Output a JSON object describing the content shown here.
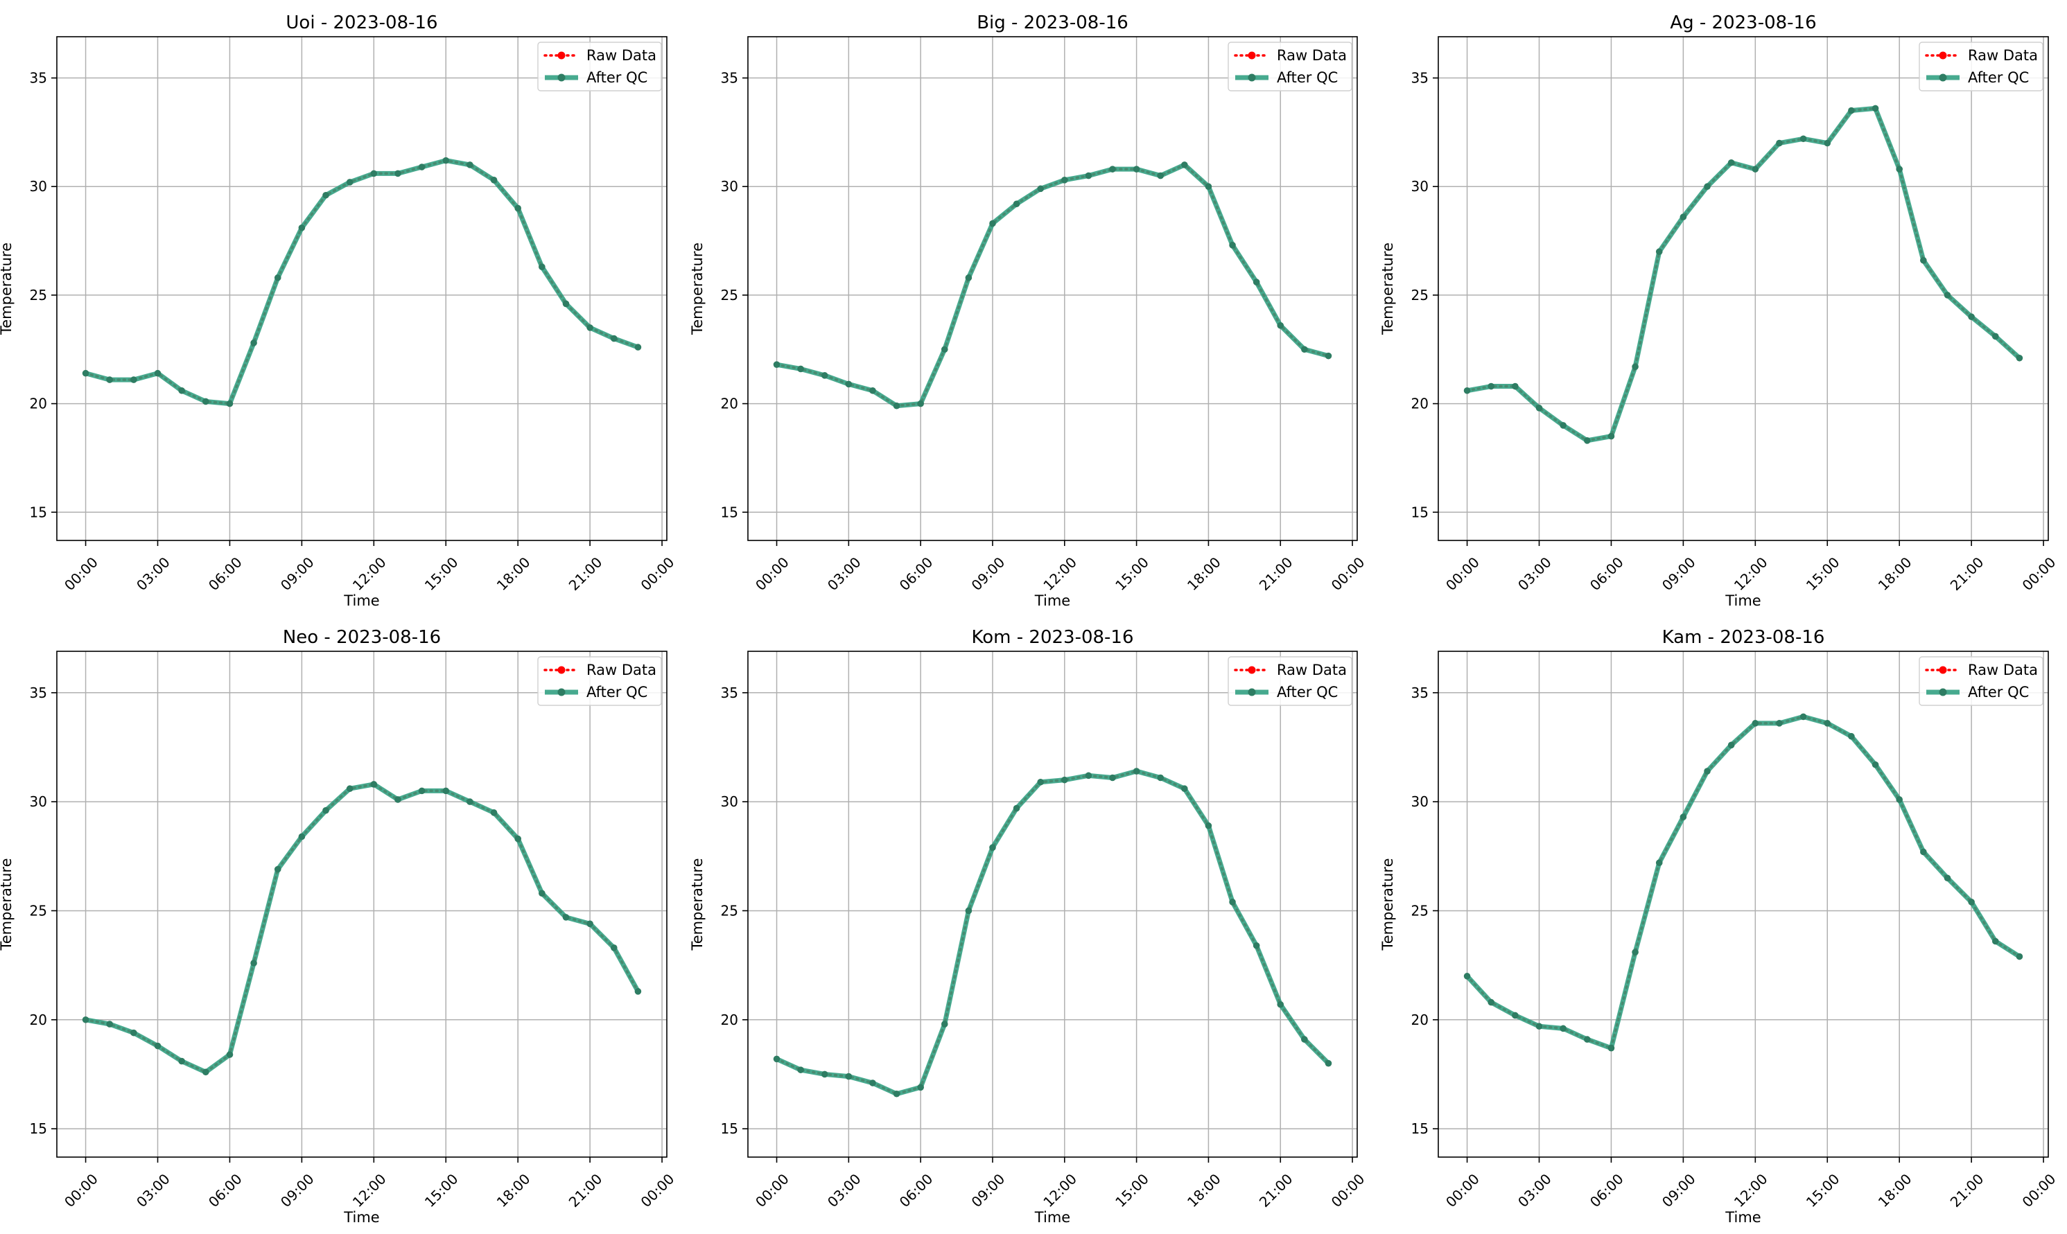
{
  "legend": {
    "raw_label": "Raw Data",
    "qc_label": "After QC"
  },
  "colors": {
    "raw": "#ff0000",
    "qc_line": "#2e9e80",
    "qc_marker": "#2e7d63",
    "grid": "#b0b0b0",
    "axis": "#000000"
  },
  "chart_data": [
    {
      "type": "line",
      "title": "Uoi - 2023-08-16",
      "xlabel": "Time",
      "ylabel": "Temperature",
      "x": [
        "00:00",
        "01:00",
        "02:00",
        "03:00",
        "04:00",
        "05:00",
        "06:00",
        "07:00",
        "08:00",
        "09:00",
        "10:00",
        "11:00",
        "12:00",
        "13:00",
        "14:00",
        "15:00",
        "16:00",
        "17:00",
        "18:00",
        "19:00",
        "20:00",
        "21:00",
        "22:00",
        "23:00"
      ],
      "xticks": [
        "00:00",
        "03:00",
        "06:00",
        "09:00",
        "12:00",
        "15:00",
        "18:00",
        "21:00",
        "00:00"
      ],
      "xlim_hours": [
        -1.2,
        24.2
      ],
      "ylim": [
        13.7,
        36.9
      ],
      "yticks": [
        15,
        20,
        25,
        30,
        35
      ],
      "grid": true,
      "legend_position": "top-right",
      "series": [
        {
          "name": "Raw Data",
          "values": [
            21.4,
            21.1,
            21.1,
            21.4,
            20.6,
            20.1,
            20.0,
            22.8,
            25.8,
            28.1,
            29.6,
            30.2,
            30.6,
            30.6,
            30.9,
            31.2,
            31.0,
            30.3,
            29.0,
            26.3,
            24.6,
            23.5,
            23.0,
            22.6
          ]
        },
        {
          "name": "After QC",
          "values": [
            21.4,
            21.1,
            21.1,
            21.4,
            20.6,
            20.1,
            20.0,
            22.8,
            25.8,
            28.1,
            29.6,
            30.2,
            30.6,
            30.6,
            30.9,
            31.2,
            31.0,
            30.3,
            29.0,
            26.3,
            24.6,
            23.5,
            23.0,
            22.6
          ]
        }
      ]
    },
    {
      "type": "line",
      "title": "Big - 2023-08-16",
      "xlabel": "Time",
      "ylabel": "Temperature",
      "x": [
        "00:00",
        "01:00",
        "02:00",
        "03:00",
        "04:00",
        "05:00",
        "06:00",
        "07:00",
        "08:00",
        "09:00",
        "10:00",
        "11:00",
        "12:00",
        "13:00",
        "14:00",
        "15:00",
        "16:00",
        "17:00",
        "18:00",
        "19:00",
        "20:00",
        "21:00",
        "22:00",
        "23:00"
      ],
      "xticks": [
        "00:00",
        "03:00",
        "06:00",
        "09:00",
        "12:00",
        "15:00",
        "18:00",
        "21:00",
        "00:00"
      ],
      "xlim_hours": [
        -1.2,
        24.2
      ],
      "ylim": [
        13.7,
        36.9
      ],
      "yticks": [
        15,
        20,
        25,
        30,
        35
      ],
      "grid": true,
      "legend_position": "top-right",
      "series": [
        {
          "name": "Raw Data",
          "values": [
            21.8,
            21.6,
            21.3,
            20.9,
            20.6,
            19.9,
            20.0,
            22.5,
            25.8,
            28.3,
            29.2,
            29.9,
            30.3,
            30.5,
            30.8,
            30.8,
            30.5,
            31.0,
            30.0,
            27.3,
            25.6,
            23.6,
            22.5,
            22.2
          ]
        },
        {
          "name": "After QC",
          "values": [
            21.8,
            21.6,
            21.3,
            20.9,
            20.6,
            19.9,
            20.0,
            22.5,
            25.8,
            28.3,
            29.2,
            29.9,
            30.3,
            30.5,
            30.8,
            30.8,
            30.5,
            31.0,
            30.0,
            27.3,
            25.6,
            23.6,
            22.5,
            22.2
          ]
        }
      ]
    },
    {
      "type": "line",
      "title": "Ag - 2023-08-16",
      "xlabel": "Time",
      "ylabel": "Temperature",
      "x": [
        "00:00",
        "01:00",
        "02:00",
        "03:00",
        "04:00",
        "05:00",
        "06:00",
        "07:00",
        "08:00",
        "09:00",
        "10:00",
        "11:00",
        "12:00",
        "13:00",
        "14:00",
        "15:00",
        "16:00",
        "17:00",
        "18:00",
        "19:00",
        "20:00",
        "21:00",
        "22:00",
        "23:00"
      ],
      "xticks": [
        "00:00",
        "03:00",
        "06:00",
        "09:00",
        "12:00",
        "15:00",
        "18:00",
        "21:00",
        "00:00"
      ],
      "xlim_hours": [
        -1.2,
        24.2
      ],
      "ylim": [
        13.7,
        36.9
      ],
      "yticks": [
        15,
        20,
        25,
        30,
        35
      ],
      "grid": true,
      "legend_position": "top-right",
      "series": [
        {
          "name": "Raw Data",
          "values": [
            20.6,
            20.8,
            20.8,
            19.8,
            19.0,
            18.3,
            18.5,
            21.7,
            27.0,
            28.6,
            30.0,
            31.1,
            30.8,
            32.0,
            32.2,
            32.0,
            33.5,
            33.6,
            30.8,
            26.6,
            25.0,
            24.0,
            23.1,
            22.1
          ]
        },
        {
          "name": "After QC",
          "values": [
            20.6,
            20.8,
            20.8,
            19.8,
            19.0,
            18.3,
            18.5,
            21.7,
            27.0,
            28.6,
            30.0,
            31.1,
            30.8,
            32.0,
            32.2,
            32.0,
            33.5,
            33.6,
            30.8,
            26.6,
            25.0,
            24.0,
            23.1,
            22.1
          ]
        }
      ]
    },
    {
      "type": "line",
      "title": "Neo - 2023-08-16",
      "xlabel": "Time",
      "ylabel": "Temperature",
      "x": [
        "00:00",
        "01:00",
        "02:00",
        "03:00",
        "04:00",
        "05:00",
        "06:00",
        "07:00",
        "08:00",
        "09:00",
        "10:00",
        "11:00",
        "12:00",
        "13:00",
        "14:00",
        "15:00",
        "16:00",
        "17:00",
        "18:00",
        "19:00",
        "20:00",
        "21:00",
        "22:00",
        "23:00"
      ],
      "xticks": [
        "00:00",
        "03:00",
        "06:00",
        "09:00",
        "12:00",
        "15:00",
        "18:00",
        "21:00",
        "00:00"
      ],
      "xlim_hours": [
        -1.2,
        24.2
      ],
      "ylim": [
        13.7,
        36.9
      ],
      "yticks": [
        15,
        20,
        25,
        30,
        35
      ],
      "grid": true,
      "legend_position": "top-right",
      "series": [
        {
          "name": "Raw Data",
          "values": [
            20.0,
            19.8,
            19.4,
            18.8,
            18.1,
            17.6,
            18.4,
            22.6,
            26.9,
            28.4,
            29.6,
            30.6,
            30.8,
            30.1,
            30.5,
            30.5,
            30.0,
            29.5,
            28.3,
            25.8,
            24.7,
            24.4,
            23.3,
            21.3
          ]
        },
        {
          "name": "After QC",
          "values": [
            20.0,
            19.8,
            19.4,
            18.8,
            18.1,
            17.6,
            18.4,
            22.6,
            26.9,
            28.4,
            29.6,
            30.6,
            30.8,
            30.1,
            30.5,
            30.5,
            30.0,
            29.5,
            28.3,
            25.8,
            24.7,
            24.4,
            23.3,
            21.3
          ]
        }
      ]
    },
    {
      "type": "line",
      "title": "Kom - 2023-08-16",
      "xlabel": "Time",
      "ylabel": "Temperature",
      "x": [
        "00:00",
        "01:00",
        "02:00",
        "03:00",
        "04:00",
        "05:00",
        "06:00",
        "07:00",
        "08:00",
        "09:00",
        "10:00",
        "11:00",
        "12:00",
        "13:00",
        "14:00",
        "15:00",
        "16:00",
        "17:00",
        "18:00",
        "19:00",
        "20:00",
        "21:00",
        "22:00",
        "23:00"
      ],
      "xticks": [
        "00:00",
        "03:00",
        "06:00",
        "09:00",
        "12:00",
        "15:00",
        "18:00",
        "21:00",
        "00:00"
      ],
      "xlim_hours": [
        -1.2,
        24.2
      ],
      "ylim": [
        13.7,
        36.9
      ],
      "yticks": [
        15,
        20,
        25,
        30,
        35
      ],
      "grid": true,
      "legend_position": "top-right",
      "series": [
        {
          "name": "Raw Data",
          "values": [
            18.2,
            17.7,
            17.5,
            17.4,
            17.1,
            16.6,
            16.9,
            19.8,
            25.0,
            27.9,
            29.7,
            30.9,
            31.0,
            31.2,
            31.1,
            31.4,
            31.1,
            30.6,
            28.9,
            25.4,
            23.4,
            20.7,
            19.1,
            18.0
          ]
        },
        {
          "name": "After QC",
          "values": [
            18.2,
            17.7,
            17.5,
            17.4,
            17.1,
            16.6,
            16.9,
            19.8,
            25.0,
            27.9,
            29.7,
            30.9,
            31.0,
            31.2,
            31.1,
            31.4,
            31.1,
            30.6,
            28.9,
            25.4,
            23.4,
            20.7,
            19.1,
            18.0
          ]
        }
      ]
    },
    {
      "type": "line",
      "title": "Kam - 2023-08-16",
      "xlabel": "Time",
      "ylabel": "Temperature",
      "x": [
        "00:00",
        "01:00",
        "02:00",
        "03:00",
        "04:00",
        "05:00",
        "06:00",
        "07:00",
        "08:00",
        "09:00",
        "10:00",
        "11:00",
        "12:00",
        "13:00",
        "14:00",
        "15:00",
        "16:00",
        "17:00",
        "18:00",
        "19:00",
        "20:00",
        "21:00",
        "22:00",
        "23:00"
      ],
      "xticks": [
        "00:00",
        "03:00",
        "06:00",
        "09:00",
        "12:00",
        "15:00",
        "18:00",
        "21:00",
        "00:00"
      ],
      "xlim_hours": [
        -1.2,
        24.2
      ],
      "ylim": [
        13.7,
        36.9
      ],
      "yticks": [
        15,
        20,
        25,
        30,
        35
      ],
      "grid": true,
      "legend_position": "top-right",
      "series": [
        {
          "name": "Raw Data",
          "values": [
            22.0,
            20.8,
            20.2,
            19.7,
            19.6,
            19.1,
            18.7,
            23.1,
            27.2,
            29.3,
            31.4,
            32.6,
            33.6,
            33.6,
            33.9,
            33.6,
            33.0,
            31.7,
            30.1,
            27.7,
            26.5,
            25.4,
            23.6,
            22.9
          ]
        },
        {
          "name": "After QC",
          "values": [
            22.0,
            20.8,
            20.2,
            19.7,
            19.6,
            19.1,
            18.7,
            23.1,
            27.2,
            29.3,
            31.4,
            32.6,
            33.6,
            33.6,
            33.9,
            33.6,
            33.0,
            31.7,
            30.1,
            27.7,
            26.5,
            25.4,
            23.6,
            22.9
          ]
        }
      ]
    }
  ]
}
